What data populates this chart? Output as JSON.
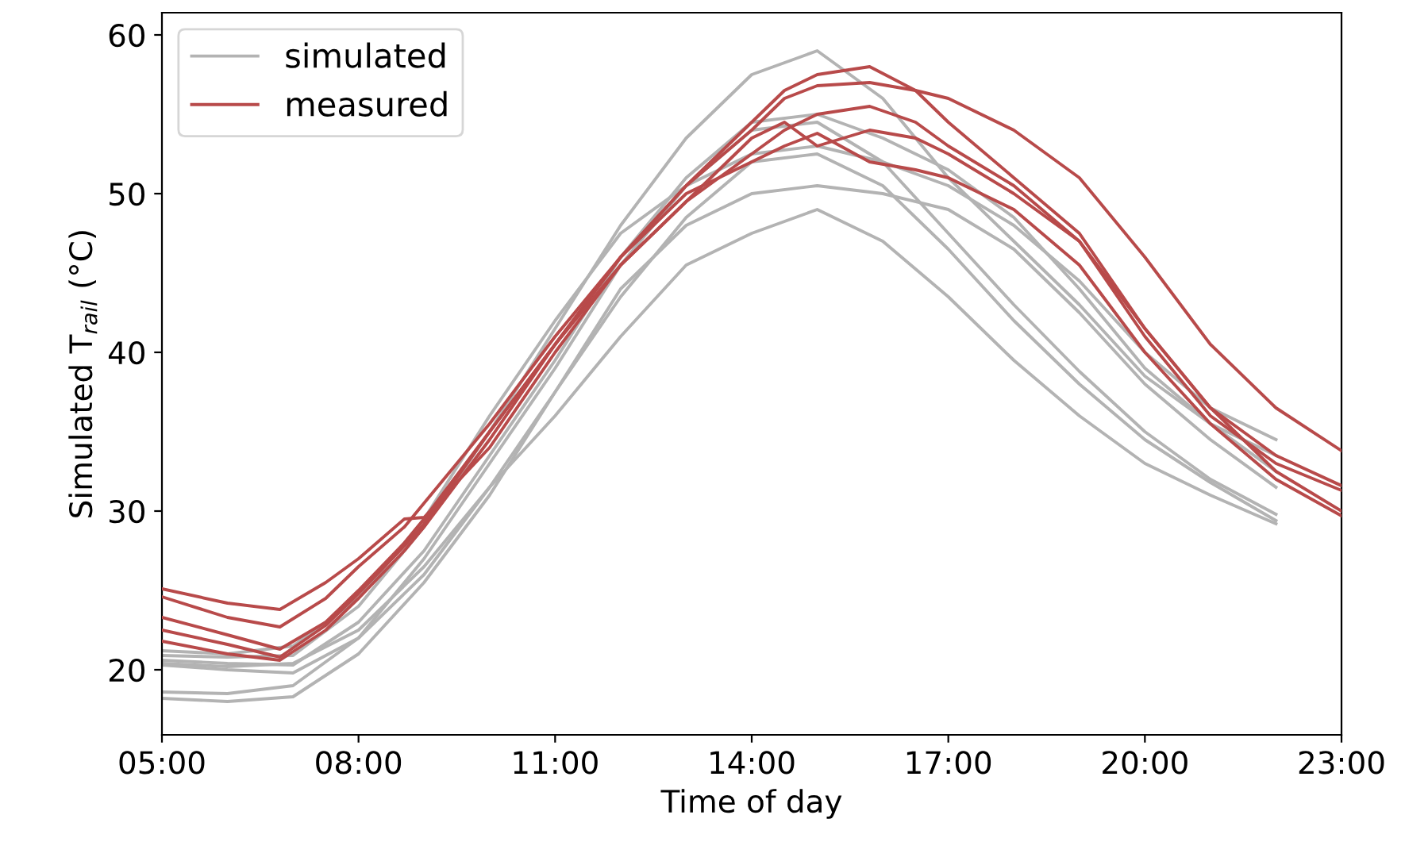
{
  "chart_data": {
    "type": "line",
    "xlabel": "Time of day",
    "ylabel": "Simulated T$_{rail}$ (°C)",
    "xlim": [
      5,
      23
    ],
    "ylim": [
      15.9,
      61.4
    ],
    "xticks": [
      {
        "value": 5,
        "label": "05:00"
      },
      {
        "value": 8,
        "label": "08:00"
      },
      {
        "value": 11,
        "label": "11:00"
      },
      {
        "value": 14,
        "label": "14:00"
      },
      {
        "value": 17,
        "label": "17:00"
      },
      {
        "value": 20,
        "label": "20:00"
      },
      {
        "value": 23,
        "label": "23:00"
      }
    ],
    "yticks": [
      20,
      30,
      40,
      50,
      60
    ],
    "grid": false,
    "legend": "top left",
    "line_style": "solid",
    "marker": "none",
    "series": [
      {
        "name": "simulated",
        "color": "#b3b3b3",
        "x": [
          5,
          6,
          7,
          8,
          9,
          10,
          11,
          12,
          13,
          14,
          15,
          16,
          17,
          18,
          19,
          20,
          21,
          22
        ],
        "values": [
          18.2,
          18.0,
          18.3,
          21.0,
          25.5,
          31.0,
          37.5,
          43.5,
          48.5,
          52.0,
          52.5,
          50.5,
          46.5,
          42.0,
          38.0,
          34.5,
          31.8,
          29.4
        ]
      },
      {
        "color": "#b3b3b3",
        "x": [
          5,
          6,
          7,
          8,
          9,
          10,
          11,
          12,
          13,
          14,
          15,
          16,
          17,
          18,
          19,
          20,
          21,
          22
        ],
        "values": [
          18.6,
          18.5,
          19.0,
          22.0,
          27.0,
          33.0,
          39.0,
          45.5,
          50.5,
          54.0,
          54.5,
          52.0,
          47.5,
          43.0,
          38.8,
          35.0,
          32.0,
          29.8
        ]
      },
      {
        "color": "#b3b3b3",
        "x": [
          5,
          6,
          7,
          8,
          9,
          10,
          11,
          12,
          13,
          14,
          15,
          16,
          17,
          18,
          19,
          20,
          21,
          22
        ],
        "values": [
          20.3,
          20.0,
          19.8,
          22.0,
          26.0,
          31.5,
          37.5,
          44.0,
          48.0,
          50.0,
          50.5,
          50.0,
          49.0,
          46.5,
          42.5,
          38.0,
          34.5,
          31.5
        ]
      },
      {
        "color": "#b3b3b3",
        "x": [
          5,
          6,
          7,
          8,
          9,
          10,
          11,
          12,
          13,
          14,
          15,
          16,
          17,
          18,
          19,
          20,
          21,
          22
        ],
        "values": [
          20.6,
          20.4,
          20.3,
          23.0,
          27.5,
          33.5,
          39.5,
          46.0,
          51.0,
          54.5,
          55.0,
          53.5,
          51.5,
          48.5,
          44.0,
          39.0,
          35.5,
          32.5
        ]
      },
      {
        "color": "#b3b3b3",
        "x": [
          5,
          6,
          7,
          8,
          9,
          10,
          11,
          12,
          13,
          14,
          15,
          16,
          17,
          18,
          19,
          20,
          21,
          22
        ],
        "values": [
          20.9,
          20.8,
          20.9,
          24.0,
          29.0,
          35.0,
          41.5,
          48.0,
          53.5,
          57.5,
          59.0,
          56.0,
          51.0,
          47.0,
          43.0,
          38.5,
          35.5,
          33.5
        ]
      },
      {
        "color": "#b3b3b3",
        "x": [
          5,
          6,
          7,
          8,
          9,
          10,
          11,
          12,
          13,
          14,
          15,
          16,
          17,
          18,
          19,
          20,
          21,
          22
        ],
        "values": [
          21.2,
          21.0,
          21.5,
          24.5,
          29.5,
          36.0,
          42.0,
          47.5,
          50.5,
          52.5,
          53.0,
          52.0,
          50.5,
          48.0,
          44.5,
          40.0,
          36.5,
          34.5
        ]
      },
      {
        "color": "#b3b3b3",
        "x": [
          5,
          6,
          7,
          8,
          9,
          10,
          11,
          12,
          13,
          14,
          15,
          16,
          17,
          18,
          19,
          20,
          21,
          22
        ],
        "values": [
          20.4,
          20.2,
          20.4,
          22.5,
          26.5,
          31.5,
          36.0,
          41.0,
          45.5,
          47.5,
          49.0,
          47.0,
          43.5,
          39.5,
          36.0,
          33.0,
          31.0,
          29.2
        ]
      },
      {
        "name": "measured",
        "color": "#b84a4a",
        "x": [
          5,
          6,
          6.8,
          7.5,
          8,
          8.7,
          9,
          10,
          11,
          12,
          13,
          14,
          14.5,
          15,
          15.8,
          16.5,
          17,
          18,
          19,
          20,
          21,
          22,
          23
        ],
        "values": [
          21.8,
          21.0,
          20.6,
          22.5,
          24.5,
          27.5,
          29.0,
          34.5,
          40.5,
          46.0,
          50.0,
          52.0,
          53.0,
          53.8,
          52.0,
          51.5,
          51.0,
          49.0,
          45.5,
          40.0,
          35.5,
          32.0,
          29.7
        ]
      },
      {
        "color": "#b84a4a",
        "x": [
          5,
          6,
          6.8,
          7.5,
          8,
          8.7,
          9,
          10,
          11,
          12,
          13,
          14,
          14.5,
          15,
          15.8,
          16.5,
          17,
          18,
          19,
          20,
          21,
          22,
          23
        ],
        "values": [
          25.1,
          24.2,
          23.8,
          25.5,
          27.0,
          29.5,
          29.6,
          34.0,
          40.0,
          45.5,
          49.5,
          53.5,
          54.5,
          53.0,
          54.0,
          53.5,
          52.5,
          50.0,
          47.0,
          41.5,
          36.5,
          33.5,
          31.6
        ]
      },
      {
        "color": "#b84a4a",
        "x": [
          5,
          6,
          6.8,
          7.5,
          8,
          8.7,
          9,
          10,
          11,
          12,
          13,
          14,
          14.5,
          15,
          15.8,
          16.5,
          17,
          18,
          19,
          20,
          21,
          22,
          23
        ],
        "values": [
          24.6,
          23.3,
          22.7,
          24.5,
          26.5,
          29.0,
          30.5,
          35.5,
          41.0,
          46.0,
          50.5,
          54.0,
          56.0,
          56.8,
          57.0,
          56.5,
          56.0,
          54.0,
          51.0,
          46.0,
          40.5,
          36.5,
          33.8
        ]
      },
      {
        "color": "#b84a4a",
        "x": [
          5,
          6,
          6.8,
          7.5,
          8,
          8.7,
          9,
          10,
          11,
          12,
          13,
          14,
          14.5,
          15,
          15.8,
          16.5,
          17,
          18,
          19,
          20,
          21,
          22,
          23
        ],
        "values": [
          23.3,
          22.2,
          21.3,
          23.0,
          25.0,
          28.0,
          29.5,
          35.0,
          40.5,
          46.0,
          50.5,
          54.5,
          56.5,
          57.5,
          58.0,
          56.5,
          54.5,
          51.0,
          47.5,
          41.5,
          36.5,
          32.5,
          30.0
        ]
      },
      {
        "color": "#b84a4a",
        "x": [
          5,
          6,
          6.8,
          7.5,
          8,
          8.7,
          9,
          10,
          11,
          12,
          13,
          14,
          14.5,
          15,
          15.8,
          16.5,
          17,
          18,
          19,
          20,
          21,
          22,
          23
        ],
        "values": [
          22.5,
          21.6,
          20.8,
          22.8,
          24.8,
          27.8,
          29.2,
          35.0,
          40.5,
          45.5,
          49.5,
          52.5,
          54.0,
          55.0,
          55.5,
          54.5,
          53.0,
          50.5,
          47.0,
          41.0,
          36.0,
          33.0,
          31.3
        ]
      }
    ]
  }
}
